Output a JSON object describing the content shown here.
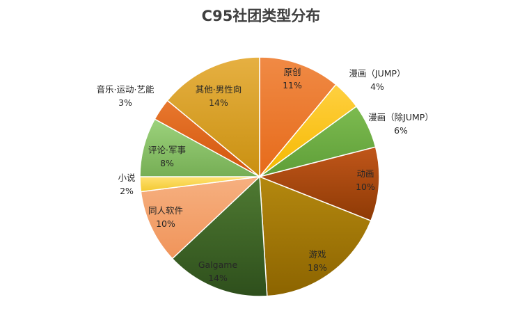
{
  "chart_data": {
    "type": "pie",
    "title": "C95社团类型分布",
    "slices": [
      {
        "label": "原创",
        "value": 11,
        "pct_label": "11%",
        "color": "#ED7D31"
      },
      {
        "label": "漫画（JUMP）",
        "value": 4,
        "pct_label": "4%",
        "color": "#FFC000"
      },
      {
        "label": "漫画（除JUMP）",
        "value": 6,
        "pct_label": "6%",
        "color": "#70AD47"
      },
      {
        "label": "动画",
        "value": 10,
        "pct_label": "10%",
        "color": "#B24C0E"
      },
      {
        "label": "游戏",
        "value": 18,
        "pct_label": "18%",
        "color": "#A67A00"
      },
      {
        "label": "Galgame",
        "value": 14,
        "pct_label": "14%",
        "color": "#43682B"
      },
      {
        "label": "同人软件",
        "value": 10,
        "pct_label": "10%",
        "color": "#F4A46E"
      },
      {
        "label": "小说",
        "value": 2,
        "pct_label": "2%",
        "color": "#FFD94D"
      },
      {
        "label": "评论·军事",
        "value": 8,
        "pct_label": "8%",
        "color": "#8DC66B"
      },
      {
        "label": "音乐·运动·艺能",
        "value": 3,
        "pct_label": "3%",
        "color": "#E0651B"
      },
      {
        "label": "其他·男性向",
        "value": 14,
        "pct_label": "14%",
        "color": "#E0A52E"
      }
    ]
  }
}
